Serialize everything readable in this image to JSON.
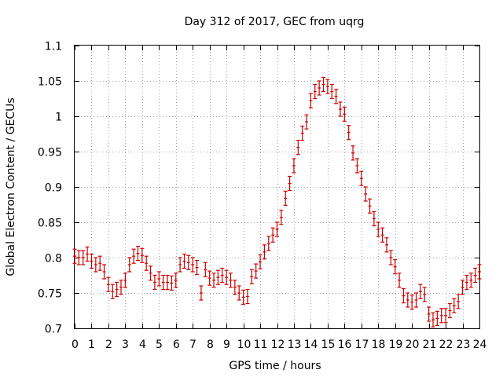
{
  "chart_data": {
    "type": "scatter",
    "title": "Day 312 of 2017, GEC from uqrg",
    "xlabel": "GPS time / hours",
    "ylabel": "Global Electron Content / GECUs",
    "xlim": [
      0,
      24
    ],
    "ylim": [
      0.7,
      1.1
    ],
    "grid": true,
    "error_bars": true,
    "series_color": "#cc0000",
    "x_ticks": [
      "0",
      "1",
      "2",
      "3",
      "4",
      "5",
      "6",
      "7",
      "8",
      "9",
      "10",
      "11",
      "12",
      "13",
      "14",
      "15",
      "16",
      "17",
      "18",
      "19",
      "20",
      "21",
      "22",
      "23",
      "24"
    ],
    "y_ticks": [
      "0.7",
      "0.75",
      "0.8",
      "0.85",
      "0.9",
      "0.95",
      "1",
      "1.05",
      "1.1"
    ],
    "series": [
      {
        "x": [
          0,
          0.25,
          0.5,
          0.75,
          1,
          1.25,
          1.5,
          1.75,
          2,
          2.25,
          2.5,
          2.75,
          3,
          3.25,
          3.5,
          3.75,
          4,
          4.25,
          4.5,
          4.75,
          5,
          5.25,
          5.5,
          5.75,
          6,
          6.25,
          6.5,
          6.75,
          7,
          7.25,
          7.5,
          7.75,
          8,
          8.25,
          8.5,
          8.75,
          9,
          9.25,
          9.5,
          9.75,
          10,
          10.25,
          10.5,
          10.75,
          11,
          11.25,
          11.5,
          11.75,
          12,
          12.25,
          12.5,
          12.75,
          13,
          13.25,
          13.5,
          13.75,
          14,
          14.25,
          14.5,
          14.75,
          15,
          15.25,
          15.5,
          15.75,
          16,
          16.25,
          16.5,
          16.75,
          17,
          17.25,
          17.5,
          17.75,
          18,
          18.25,
          18.5,
          18.75,
          19,
          19.25,
          19.5,
          19.75,
          20,
          20.25,
          20.5,
          20.75,
          21,
          21.25,
          21.5,
          21.75,
          22,
          22.25,
          22.5,
          22.75,
          23,
          23.25,
          23.5,
          23.75,
          24
        ],
        "y": [
          0.802,
          0.8,
          0.8,
          0.805,
          0.795,
          0.79,
          0.792,
          0.78,
          0.762,
          0.752,
          0.755,
          0.758,
          0.768,
          0.79,
          0.802,
          0.806,
          0.803,
          0.792,
          0.778,
          0.765,
          0.77,
          0.765,
          0.765,
          0.764,
          0.768,
          0.79,
          0.795,
          0.793,
          0.79,
          0.786,
          0.75,
          0.783,
          0.771,
          0.768,
          0.772,
          0.775,
          0.772,
          0.768,
          0.758,
          0.75,
          0.744,
          0.745,
          0.773,
          0.781,
          0.794,
          0.808,
          0.82,
          0.832,
          0.84,
          0.857,
          0.884,
          0.905,
          0.93,
          0.956,
          0.976,
          0.992,
          1.022,
          1.035,
          1.04,
          1.045,
          1.042,
          1.035,
          1.028,
          1.01,
          1.003,
          0.977,
          0.948,
          0.93,
          0.912,
          0.89,
          0.873,
          0.855,
          0.84,
          0.832,
          0.818,
          0.8,
          0.787,
          0.768,
          0.746,
          0.74,
          0.737,
          0.74,
          0.752,
          0.748,
          0.72,
          0.712,
          0.714,
          0.718,
          0.718,
          0.725,
          0.732,
          0.738,
          0.758,
          0.765,
          0.768,
          0.775,
          0.78
        ],
        "err": [
          0.01,
          0.01,
          0.01,
          0.01,
          0.01,
          0.01,
          0.01,
          0.01,
          0.01,
          0.01,
          0.01,
          0.01,
          0.01,
          0.01,
          0.01,
          0.01,
          0.01,
          0.01,
          0.01,
          0.01,
          0.01,
          0.01,
          0.01,
          0.01,
          0.01,
          0.01,
          0.01,
          0.01,
          0.01,
          0.01,
          0.01,
          0.01,
          0.01,
          0.01,
          0.01,
          0.01,
          0.01,
          0.01,
          0.01,
          0.01,
          0.01,
          0.01,
          0.01,
          0.01,
          0.01,
          0.01,
          0.01,
          0.01,
          0.01,
          0.01,
          0.01,
          0.01,
          0.01,
          0.01,
          0.01,
          0.01,
          0.01,
          0.01,
          0.01,
          0.01,
          0.01,
          0.01,
          0.01,
          0.01,
          0.01,
          0.01,
          0.01,
          0.01,
          0.01,
          0.01,
          0.01,
          0.01,
          0.01,
          0.01,
          0.01,
          0.01,
          0.01,
          0.01,
          0.01,
          0.01,
          0.01,
          0.01,
          0.01,
          0.01,
          0.01,
          0.01,
          0.01,
          0.01,
          0.01,
          0.01,
          0.01,
          0.01,
          0.01,
          0.01,
          0.01,
          0.01,
          0.01
        ]
      }
    ]
  }
}
